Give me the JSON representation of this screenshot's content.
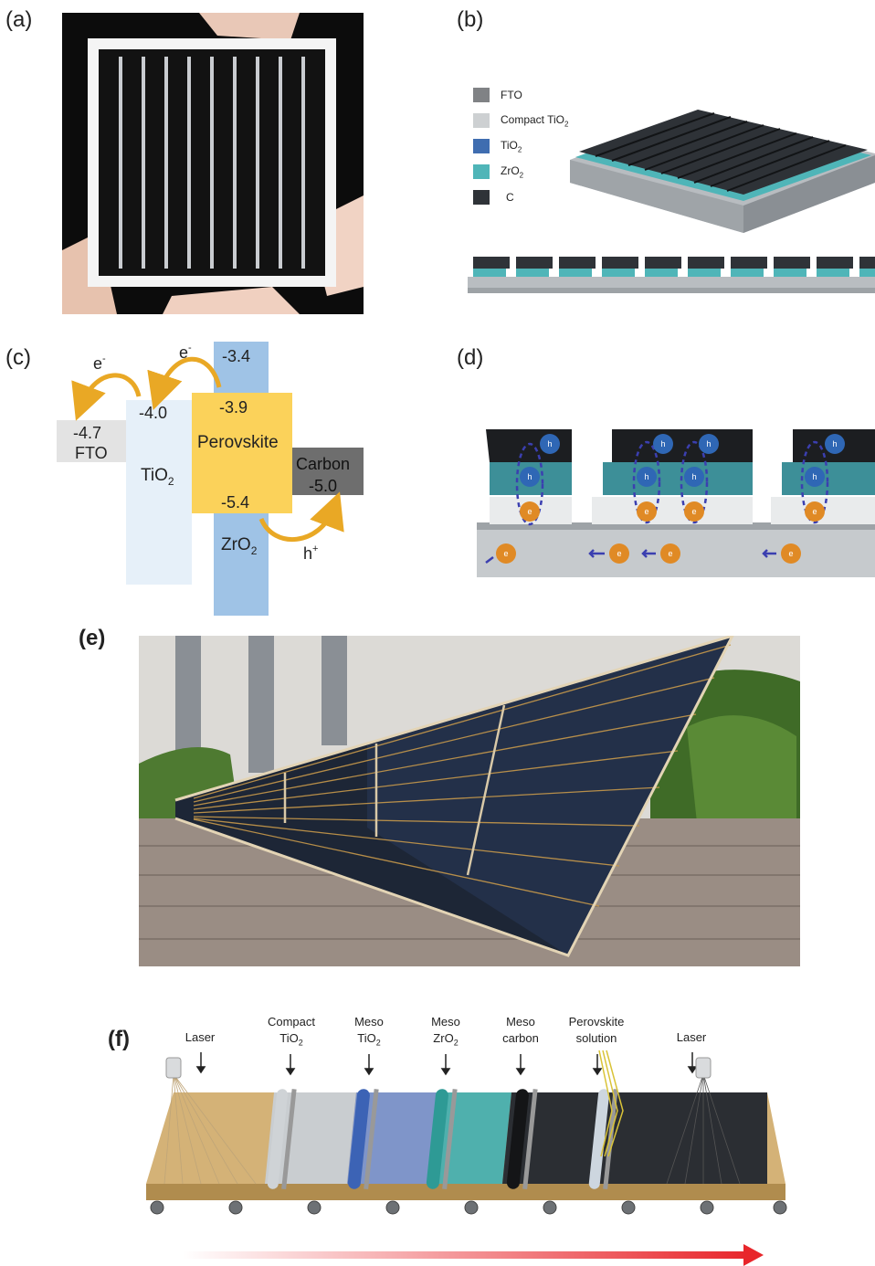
{
  "panels": {
    "a": {
      "label": "(a)"
    },
    "b": {
      "label": "(b)",
      "legend": [
        {
          "name": "FTO",
          "color": "#808285"
        },
        {
          "name": "Compact TiO",
          "sub": "2",
          "color": "#cdd0d2"
        },
        {
          "name": "TiO",
          "sub": "2",
          "color": "#3f6db0"
        },
        {
          "name": "ZrO",
          "sub": "2",
          "color": "#4fb5b8"
        },
        {
          "name": "C",
          "color": "#2f3338"
        }
      ]
    },
    "c": {
      "label": "(c)",
      "electron": "e",
      "electron_sup": "-",
      "hole": "h",
      "hole_sup": "+",
      "fto": {
        "value": "-4.7",
        "name": "FTO"
      },
      "tio2": {
        "value": "-4.0",
        "name": "TiO",
        "sub": "2"
      },
      "zro2": {
        "top": "-3.4",
        "name": "ZrO",
        "sub": "2"
      },
      "perovskite": {
        "top": "-3.9",
        "name": "Perovskite",
        "bottom": "-5.4"
      },
      "carbon": {
        "name": "Carbon",
        "value": "-5.0"
      }
    },
    "d": {
      "label": "(d)",
      "hole_symbol": "h",
      "electron_symbol": "e"
    },
    "e": {
      "label": "(e)"
    },
    "f": {
      "label": "(f)",
      "stations": [
        {
          "lines": [
            "Laser"
          ]
        },
        {
          "lines": [
            "Compact",
            "TiO"
          ],
          "sub": "2"
        },
        {
          "lines": [
            "Meso",
            "TiO"
          ],
          "sub": "2"
        },
        {
          "lines": [
            "Meso",
            "ZrO"
          ],
          "sub": "2"
        },
        {
          "lines": [
            "Meso",
            "carbon"
          ]
        },
        {
          "lines": [
            "Perovskite",
            "solution"
          ]
        },
        {
          "lines": [
            "Laser"
          ]
        }
      ]
    }
  }
}
